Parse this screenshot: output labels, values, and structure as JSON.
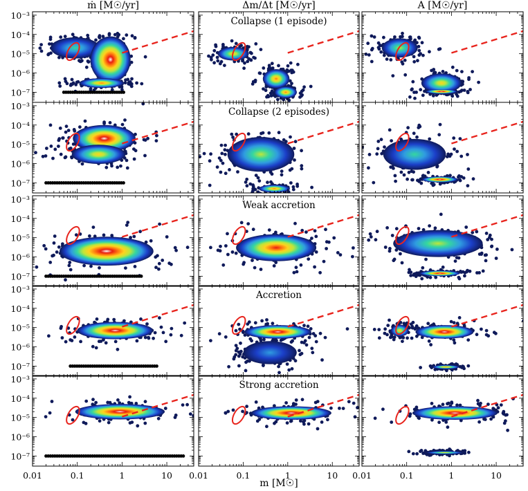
{
  "figure": {
    "column_titles": [
      "ṁ [M☉/yr]",
      "Δm/Δt [M☉/yr]",
      "A [M☉/yr]"
    ],
    "row_titles": [
      "Collapse (1 episode)",
      "Collapse (2 episodes)",
      "Weak accretion",
      "Accretion",
      "Strong accretion"
    ],
    "xlabel": "m [M☉]",
    "x_tick_labels": [
      "0.01",
      "0.1",
      "1",
      "10"
    ],
    "y_tick_labels": [
      "10⁻³",
      "10⁻⁴",
      "10⁻⁵",
      "10⁻⁶",
      "10⁻⁷"
    ]
  },
  "colors": {
    "reference_line": "#e8241d",
    "ellipse": "#e8241d",
    "density_scale": [
      "#0f1a5a",
      "#1b3fc8",
      "#2f9be0",
      "#35d6a0",
      "#bfe63a",
      "#ffd21e",
      "#ff7a10",
      "#e81e10",
      "#ffffff"
    ]
  },
  "chart_data": {
    "type": "scatter",
    "description_of_axes": {
      "x_scale": "log",
      "y_scale": "log"
    },
    "xlim": [
      0.01,
      40
    ],
    "ylim": [
      3e-08,
      0.0015
    ],
    "reference_line": {
      "style": "dashed",
      "points": [
        [
          1,
          1.1e-05
        ],
        [
          40,
          0.00015
        ]
      ]
    },
    "reference_ellipse": {
      "center": [
        0.08,
        1.3e-05
      ],
      "shape": "tilted ellipse, approximate"
    },
    "panels": [
      {
        "row": 0,
        "col": 0,
        "blobs": [
          [
            0.09,
            2e-05,
            0.55,
            0.55,
            0.4
          ],
          [
            0.55,
            5e-06,
            0.45,
            1.2,
            1.0
          ],
          [
            0.35,
            3e-07,
            0.5,
            0.25,
            0.8
          ]
        ],
        "floor": {
          "y": 1e-07,
          "xmin": 0.05,
          "xmax": 1.2
        }
      },
      {
        "row": 0,
        "col": 1,
        "blobs": [
          [
            0.06,
            1e-05,
            0.35,
            0.35,
            0.6
          ],
          [
            0.55,
            5e-07,
            0.3,
            0.5,
            0.8
          ],
          [
            0.9,
            1e-07,
            0.25,
            0.3,
            0.7
          ]
        ],
        "floor": null
      },
      {
        "row": 0,
        "col": 2,
        "blobs": [
          [
            0.07,
            2e-05,
            0.4,
            0.5,
            0.5
          ],
          [
            0.6,
            3e-07,
            0.45,
            0.5,
            0.6
          ],
          [
            0.6,
            1.1e-07,
            0.35,
            0.12,
            1.0
          ]
        ],
        "floor": null
      },
      {
        "row": 1,
        "col": 0,
        "blobs": [
          [
            0.4,
            2e-05,
            0.7,
            0.7,
            1.0
          ],
          [
            0.3,
            3e-06,
            0.6,
            0.5,
            0.6
          ]
        ],
        "floor": {
          "y": 1e-07,
          "xmin": 0.02,
          "xmax": 1.2
        }
      },
      {
        "row": 1,
        "col": 1,
        "blobs": [
          [
            0.25,
            3e-06,
            0.75,
            0.9,
            0.55
          ],
          [
            0.5,
            5e-08,
            0.35,
            0.2,
            0.8
          ]
        ],
        "floor": null
      },
      {
        "row": 1,
        "col": 2,
        "blobs": [
          [
            0.15,
            3e-06,
            0.7,
            0.8,
            0.35
          ],
          [
            0.55,
            1.5e-07,
            0.4,
            0.15,
            1.0
          ]
        ],
        "floor": null
      },
      {
        "row": 2,
        "col": 0,
        "blobs": [
          [
            0.45,
            2e-06,
            1.05,
            0.75,
            1.0
          ]
        ],
        "floor": {
          "y": 1e-07,
          "xmin": 0.02,
          "xmax": 3
        }
      },
      {
        "row": 2,
        "col": 1,
        "blobs": [
          [
            0.55,
            3e-06,
            0.9,
            0.7,
            0.9
          ]
        ],
        "floor": null
      },
      {
        "row": 2,
        "col": 2,
        "blobs": [
          [
            0.5,
            5e-06,
            1.0,
            0.7,
            0.5
          ],
          [
            0.55,
            1.4e-07,
            0.45,
            0.14,
            1.0
          ]
        ],
        "floor": null
      },
      {
        "row": 3,
        "col": 0,
        "blobs": [
          [
            0.7,
            7e-06,
            0.85,
            0.45,
            1.0
          ]
        ],
        "floor": {
          "y": 1e-07,
          "xmin": 0.07,
          "xmax": 6
        }
      },
      {
        "row": 3,
        "col": 1,
        "blobs": [
          [
            0.6,
            6e-06,
            0.75,
            0.35,
            1.0
          ],
          [
            0.4,
            5e-07,
            0.6,
            0.6,
            0.2
          ]
        ],
        "floor": null
      },
      {
        "row": 3,
        "col": 2,
        "blobs": [
          [
            0.7,
            6e-06,
            0.65,
            0.35,
            1.0
          ],
          [
            0.07,
            7e-06,
            0.2,
            0.3,
            0.6
          ],
          [
            0.75,
            9e-08,
            0.3,
            0.1,
            0.8
          ]
        ],
        "floor": null
      },
      {
        "row": 4,
        "col": 0,
        "blobs": [
          [
            0.9,
            2e-05,
            1.0,
            0.4,
            1.0
          ]
        ],
        "floor": {
          "y": 1e-07,
          "xmin": 0.02,
          "xmax": 25
        }
      },
      {
        "row": 4,
        "col": 1,
        "blobs": [
          [
            1.2,
            1.7e-05,
            0.9,
            0.35,
            1.0
          ]
        ],
        "floor": null
      },
      {
        "row": 4,
        "col": 2,
        "blobs": [
          [
            1.2,
            1.7e-05,
            0.95,
            0.35,
            1.0
          ],
          [
            0.7,
            1.5e-07,
            0.4,
            0.08,
            0.6
          ]
        ],
        "floor": null
      }
    ]
  }
}
